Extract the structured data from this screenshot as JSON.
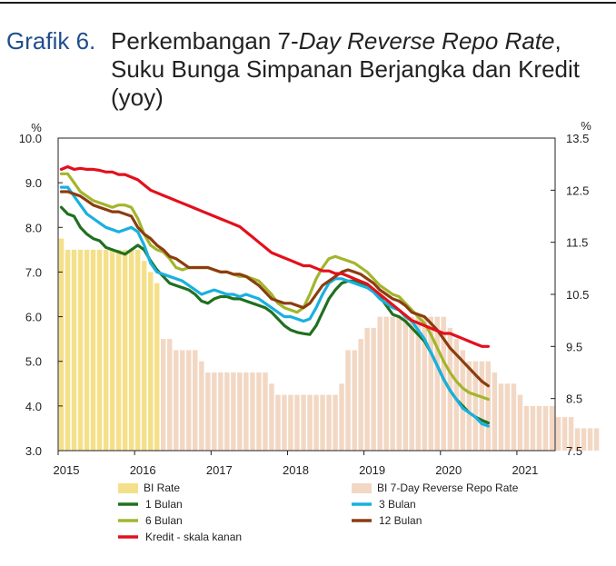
{
  "figure_label": "Grafik 6.",
  "title_prefix": "Perkembangan 7-",
  "title_italic": "Day Reverse Repo Rate",
  "title_suffix": ",",
  "title_line2": "Suku Bunga Simpanan Berjangka dan Kredit",
  "title_line3": "(yoy)",
  "chart_data": {
    "type": "line",
    "title": "Perkembangan 7-Day Reverse Repo Rate, Suku Bunga Simpanan Berjangka dan Kredit (yoy)",
    "ylabel_left": "%",
    "ylabel_right": "%",
    "ylim_left": [
      3.0,
      10.0
    ],
    "ylim_right": [
      7.5,
      13.5
    ],
    "yticks_left": [
      "10.0",
      "9.0",
      "8.0",
      "7.0",
      "6.0",
      "5.0",
      "4.0",
      "3.0"
    ],
    "yticks_right": [
      "13.5",
      "12.5",
      "11.5",
      "10.5",
      "9.5",
      "8.5",
      "7.5"
    ],
    "xticks": [
      "2015",
      "2016",
      "2017",
      "2018",
      "2019",
      "2020",
      "2021"
    ],
    "x_start": 2015.0,
    "x_end": 2021.42,
    "bars": [
      {
        "name": "BI Rate",
        "color": "#f5e08a",
        "values": [
          7.75,
          7.5,
          7.5,
          7.5,
          7.5,
          7.5,
          7.5,
          7.5,
          7.5,
          7.5,
          7.5,
          7.5,
          7.5,
          7.25,
          7.0,
          6.75
        ]
      },
      {
        "name": "BI 7-Day Reverse Repo Rate",
        "color": "#f2d8c4",
        "values": [
          5.5,
          5.5,
          5.25,
          5.25,
          5.25,
          5.25,
          5.0,
          4.75,
          4.75,
          4.75,
          4.75,
          4.75,
          4.75,
          4.75,
          4.75,
          4.75,
          4.75,
          4.5,
          4.25,
          4.25,
          4.25,
          4.25,
          4.25,
          4.25,
          4.25,
          4.25,
          4.25,
          4.25,
          4.5,
          5.25,
          5.25,
          5.5,
          5.75,
          5.75,
          6.0,
          6.0,
          6.0,
          6.0,
          6.0,
          6.0,
          6.0,
          6.0,
          6.0,
          6.0,
          6.0,
          5.75,
          5.5,
          5.25,
          5.0,
          5.0,
          5.0,
          5.0,
          4.75,
          4.5,
          4.5,
          4.5,
          4.25,
          4.0,
          4.0,
          4.0,
          4.0,
          4.0,
          3.75,
          3.75,
          3.75,
          3.5,
          3.5,
          3.5,
          3.5
        ]
      }
    ],
    "series": [
      {
        "name": "1 Bulan",
        "axis": "left",
        "color": "#207020",
        "values": [
          8.45,
          8.3,
          8.25,
          8.0,
          7.85,
          7.75,
          7.7,
          7.55,
          7.5,
          7.45,
          7.4,
          7.5,
          7.6,
          7.5,
          7.25,
          7.05,
          6.9,
          6.75,
          6.7,
          6.65,
          6.6,
          6.5,
          6.35,
          6.3,
          6.4,
          6.45,
          6.45,
          6.4,
          6.4,
          6.35,
          6.3,
          6.25,
          6.2,
          6.1,
          5.95,
          5.8,
          5.7,
          5.65,
          5.62,
          5.6,
          5.8,
          6.1,
          6.4,
          6.6,
          6.75,
          6.8,
          6.8,
          6.75,
          6.7,
          6.6,
          6.45,
          6.25,
          6.05,
          6.0,
          5.9,
          5.75,
          5.6,
          5.45,
          5.2,
          4.9,
          4.6,
          4.35,
          4.15,
          4.0,
          3.85,
          3.75,
          3.68,
          3.62
        ]
      },
      {
        "name": "3 Bulan",
        "axis": "left",
        "color": "#19b0e0",
        "values": [
          8.9,
          8.9,
          8.7,
          8.5,
          8.3,
          8.2,
          8.1,
          8.0,
          7.95,
          7.9,
          7.95,
          8.0,
          7.9,
          7.6,
          7.2,
          7.0,
          6.95,
          6.9,
          6.85,
          6.8,
          6.7,
          6.6,
          6.5,
          6.55,
          6.6,
          6.55,
          6.5,
          6.5,
          6.45,
          6.5,
          6.45,
          6.4,
          6.3,
          6.2,
          6.1,
          6.0,
          6.0,
          5.95,
          5.9,
          5.95,
          6.2,
          6.5,
          6.75,
          6.85,
          6.85,
          6.8,
          6.75,
          6.7,
          6.65,
          6.55,
          6.4,
          6.3,
          6.2,
          6.15,
          6.0,
          5.9,
          5.7,
          5.5,
          5.2,
          4.9,
          4.6,
          4.35,
          4.15,
          3.95,
          3.85,
          3.75,
          3.6,
          3.55
        ]
      },
      {
        "name": "6 Bulan",
        "axis": "left",
        "color": "#a3b52c",
        "values": [
          9.2,
          9.2,
          9.0,
          8.8,
          8.7,
          8.6,
          8.55,
          8.5,
          8.45,
          8.5,
          8.5,
          8.45,
          8.2,
          7.85,
          7.6,
          7.5,
          7.45,
          7.3,
          7.1,
          7.05,
          7.1,
          7.1,
          7.1,
          7.1,
          7.05,
          7.0,
          7.0,
          6.95,
          6.9,
          6.9,
          6.85,
          6.8,
          6.65,
          6.5,
          6.3,
          6.2,
          6.15,
          6.1,
          6.2,
          6.5,
          6.85,
          7.1,
          7.3,
          7.35,
          7.3,
          7.25,
          7.2,
          7.1,
          7.0,
          6.85,
          6.7,
          6.6,
          6.5,
          6.45,
          6.3,
          6.15,
          6.0,
          5.85,
          5.6,
          5.3,
          5.0,
          4.75,
          4.55,
          4.4,
          4.3,
          4.25,
          4.2,
          4.15
        ]
      },
      {
        "name": "12 Bulan",
        "axis": "left",
        "color": "#8b3d10",
        "values": [
          8.8,
          8.8,
          8.75,
          8.7,
          8.6,
          8.5,
          8.45,
          8.4,
          8.35,
          8.35,
          8.3,
          8.25,
          8.0,
          7.85,
          7.75,
          7.6,
          7.5,
          7.35,
          7.3,
          7.2,
          7.1,
          7.1,
          7.1,
          7.1,
          7.05,
          7.0,
          7.0,
          6.95,
          6.95,
          6.9,
          6.8,
          6.7,
          6.55,
          6.4,
          6.35,
          6.3,
          6.3,
          6.25,
          6.2,
          6.3,
          6.5,
          6.7,
          6.8,
          6.9,
          7.0,
          7.05,
          7.0,
          6.95,
          6.85,
          6.75,
          6.6,
          6.5,
          6.4,
          6.35,
          6.25,
          6.1,
          6.05,
          6.0,
          5.85,
          5.7,
          5.5,
          5.3,
          5.15,
          5.0,
          4.85,
          4.7,
          4.55,
          4.45
        ]
      },
      {
        "name": "Kredit - skala kanan",
        "axis": "right",
        "color": "#e3101c",
        "values": [
          12.9,
          12.95,
          12.9,
          12.92,
          12.9,
          12.9,
          12.88,
          12.85,
          12.85,
          12.8,
          12.8,
          12.75,
          12.7,
          12.6,
          12.5,
          12.45,
          12.4,
          12.35,
          12.3,
          12.25,
          12.2,
          12.15,
          12.1,
          12.05,
          12.0,
          11.95,
          11.9,
          11.85,
          11.8,
          11.7,
          11.6,
          11.5,
          11.4,
          11.3,
          11.25,
          11.2,
          11.15,
          11.1,
          11.05,
          11.05,
          11.0,
          10.95,
          10.95,
          10.9,
          10.9,
          10.85,
          10.8,
          10.75,
          10.7,
          10.6,
          10.5,
          10.4,
          10.3,
          10.2,
          10.1,
          10.0,
          9.95,
          9.9,
          9.85,
          9.8,
          9.75,
          9.75,
          9.7,
          9.65,
          9.6,
          9.55,
          9.5,
          9.5
        ]
      }
    ],
    "legend": [
      "BI Rate",
      "BI 7-Day Reverse Repo Rate",
      "1 Bulan",
      "3 Bulan",
      "6 Bulan",
      "12 Bulan",
      "Kredit - skala kanan"
    ],
    "legend_position": "bottom"
  }
}
